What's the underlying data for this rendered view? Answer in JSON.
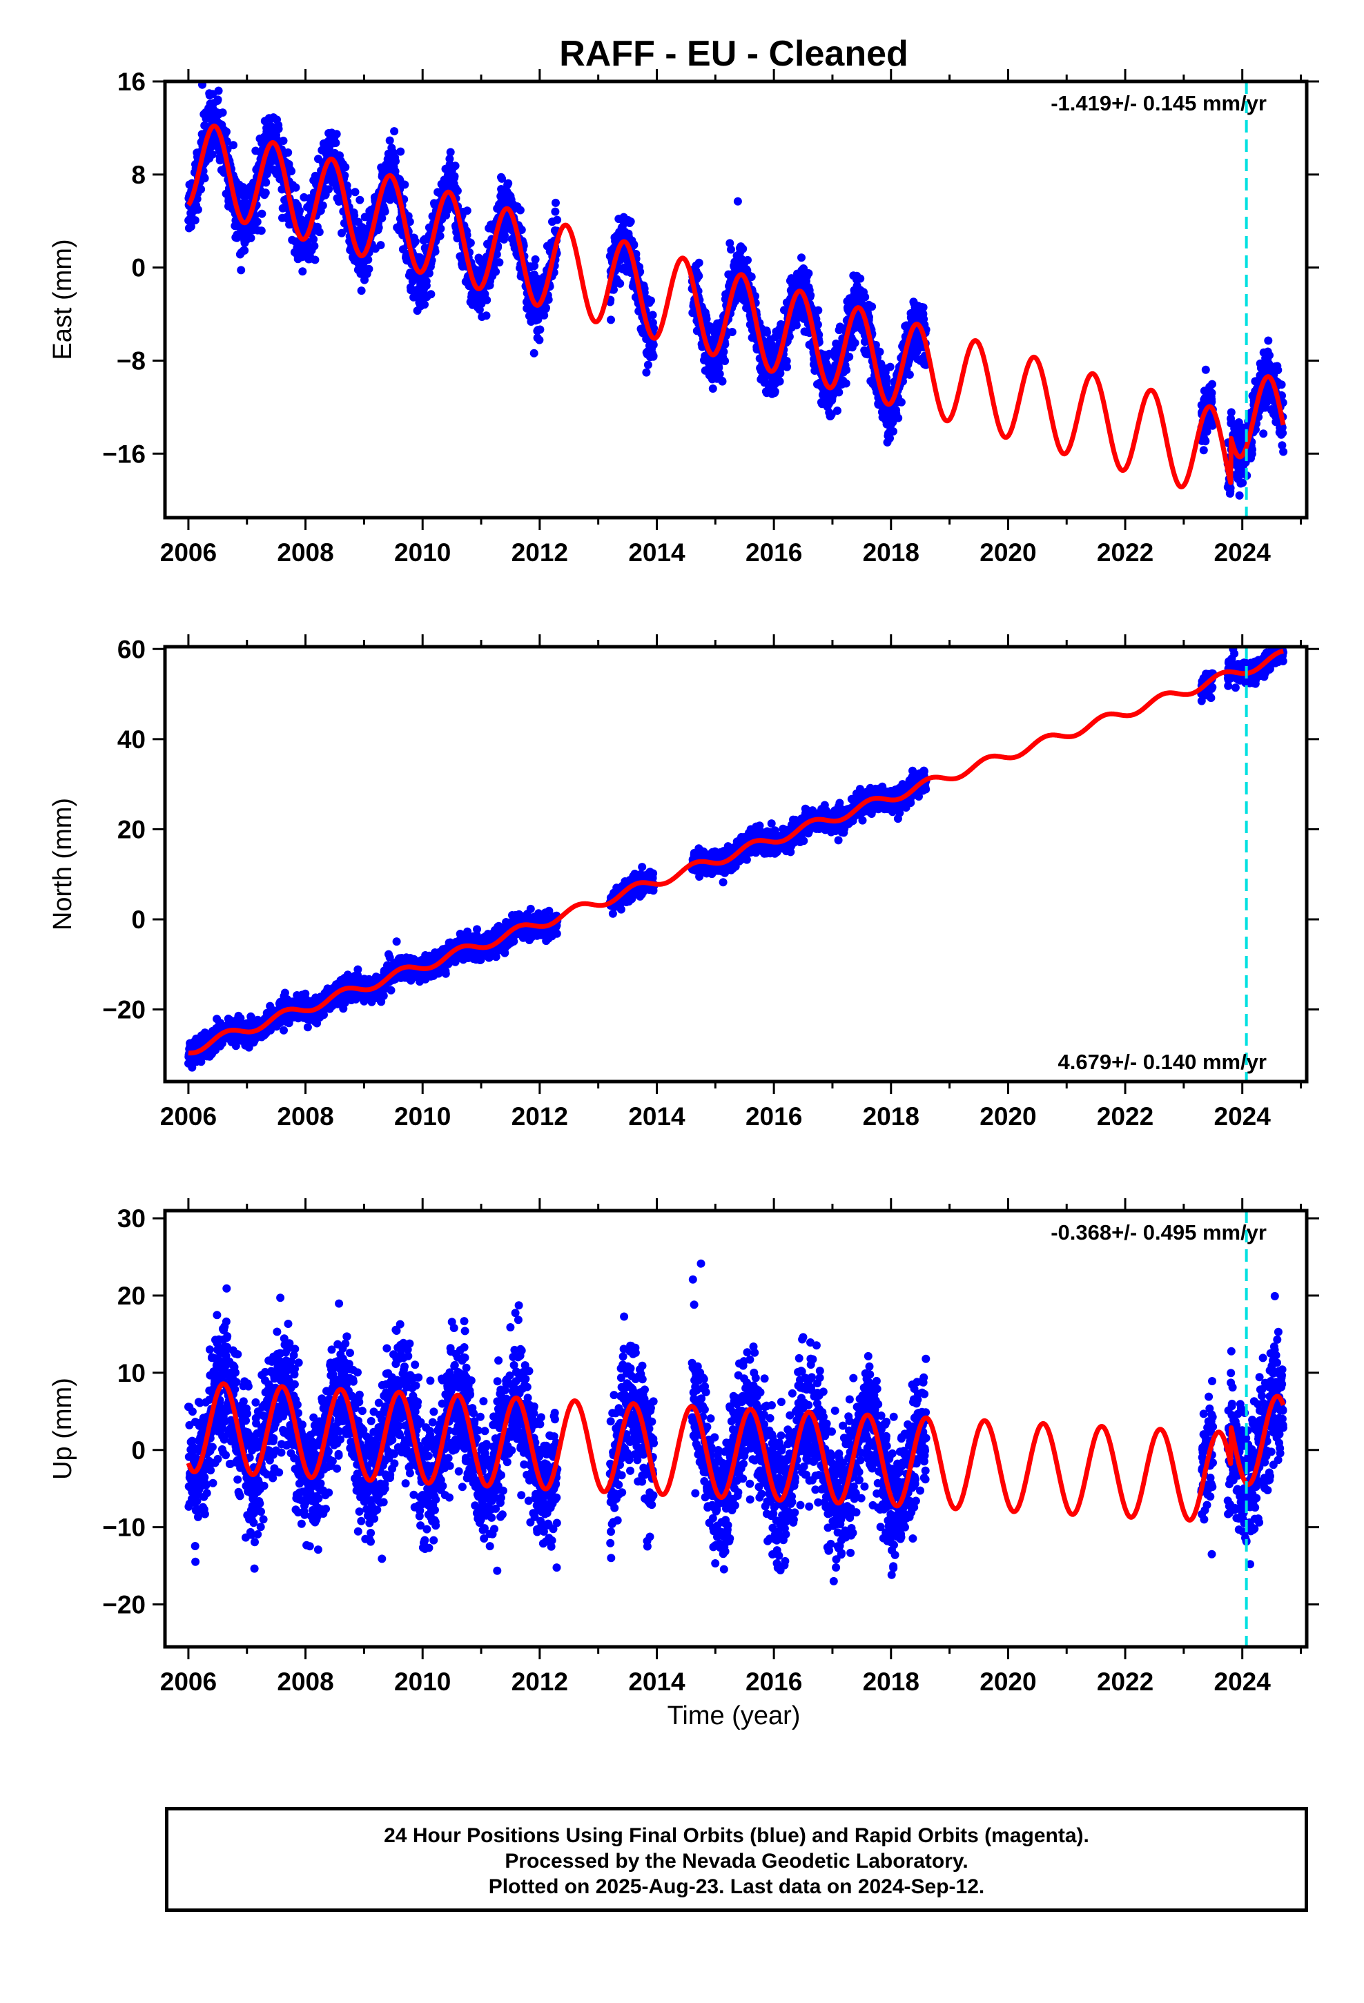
{
  "title": "RAFF  - EU - Cleaned",
  "xlabel": "Time (year)",
  "footer": {
    "line1": "24 Hour Positions Using Final Orbits (blue) and Rapid Orbits (magenta).",
    "line2": "Processed by the Nevada Geodetic Laboratory.",
    "line3": "Plotted on 2025-Aug-23. Last data on 2024-Sep-12."
  },
  "colors": {
    "data": "#0000ff",
    "model": "#ff0000",
    "marker": "#00e0e0"
  },
  "chart_data": [
    {
      "type": "scatter",
      "panel": "east",
      "ylabel": "East (mm)",
      "rate_label": "-1.419+/- 0.145 mm/yr",
      "xlim": [
        2005.6,
        2025.1
      ],
      "ylim": [
        -21.5,
        16
      ],
      "xticks": [
        2006,
        2008,
        2010,
        2012,
        2014,
        2016,
        2018,
        2020,
        2022,
        2024
      ],
      "yticks": [
        16,
        8,
        0,
        -8,
        -16
      ],
      "marker_x": 2024.07,
      "model": {
        "t0": 2006.0,
        "offset": 9.0,
        "trend": -1.419,
        "amplitude": 3.8,
        "peak_phase": 0.45,
        "step": {
          "x": 2023.8,
          "value": 4.0
        }
      },
      "data_segments": [
        [
          2006.0,
          2012.3
        ],
        [
          2013.2,
          2013.95
        ],
        [
          2014.6,
          2018.6
        ],
        [
          2023.3,
          2023.5
        ],
        [
          2023.75,
          2024.7
        ]
      ],
      "noise": 1.3
    },
    {
      "type": "scatter",
      "panel": "north",
      "ylabel": "North (mm)",
      "rate_label": "4.679+/- 0.140 mm/yr",
      "xlim": [
        2005.6,
        2025.1
      ],
      "ylim": [
        -36,
        60.5
      ],
      "xticks": [
        2006,
        2008,
        2010,
        2012,
        2014,
        2016,
        2018,
        2020,
        2022,
        2024
      ],
      "yticks": [
        60,
        40,
        20,
        0,
        -20
      ],
      "marker_x": 2024.07,
      "model": {
        "t0": 2006.0,
        "offset": -29.0,
        "trend": 4.679,
        "amplitude": 1.1,
        "peak_phase": 0.65,
        "step": null
      },
      "data_segments": [
        [
          2006.0,
          2012.3
        ],
        [
          2013.2,
          2013.95
        ],
        [
          2014.6,
          2018.6
        ],
        [
          2023.3,
          2023.5
        ],
        [
          2023.75,
          2024.7
        ]
      ],
      "noise": 1.3
    },
    {
      "type": "scatter",
      "panel": "up",
      "ylabel": "Up (mm)",
      "rate_label": "-0.368+/- 0.495 mm/yr",
      "xlim": [
        2005.6,
        2025.1
      ],
      "ylim": [
        -25.5,
        31
      ],
      "xticks": [
        2006,
        2008,
        2010,
        2012,
        2014,
        2016,
        2018,
        2020,
        2022,
        2024
      ],
      "yticks": [
        30,
        20,
        10,
        0,
        -10,
        -20
      ],
      "marker_x": 2024.07,
      "model": {
        "t0": 2006.0,
        "offset": 3.0,
        "trend": -0.368,
        "amplitude": 5.8,
        "peak_phase": 0.6,
        "step": {
          "x": 2023.8,
          "value": 5.0
        }
      },
      "data_segments": [
        [
          2006.0,
          2012.3
        ],
        [
          2013.2,
          2013.95
        ],
        [
          2014.6,
          2018.6
        ],
        [
          2023.3,
          2023.5
        ],
        [
          2023.75,
          2024.7
        ]
      ],
      "noise": 4.2
    }
  ]
}
